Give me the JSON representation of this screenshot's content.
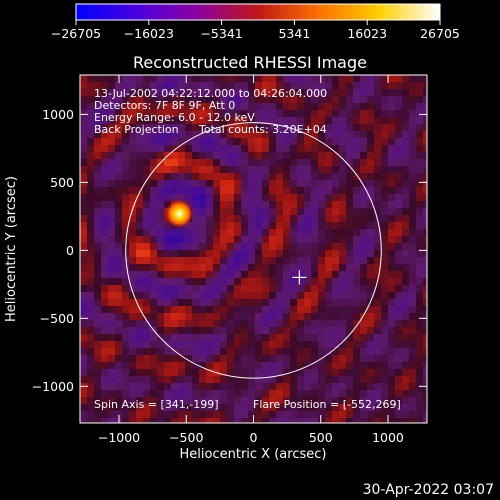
{
  "chart_data": {
    "type": "heatmap",
    "title": "Reconstructed RHESSI Image",
    "xlabel": "Heliocentric X (arcsec)",
    "ylabel": "Heliocentric Y (arcsec)",
    "xlim": [
      -1290,
      1290
    ],
    "ylim": [
      -1270,
      1290
    ],
    "xticks": [
      "−1000",
      "−500",
      "0",
      "500",
      "1000"
    ],
    "xtick_values": [
      -1000,
      -500,
      0,
      500,
      1000
    ],
    "yticks": [
      "1000",
      "500",
      "0",
      "−500",
      "−1000"
    ],
    "ytick_values": [
      1000,
      500,
      0,
      -500,
      -1000
    ],
    "colorbar": {
      "tick_labels": [
        "−26705",
        "−16023",
        "−5341",
        "5341",
        "16023",
        "26705"
      ],
      "tick_values": [
        -26705,
        -16023,
        -5341,
        5341,
        16023,
        26705
      ],
      "range": [
        -26705,
        26705
      ],
      "colors": [
        "#0000ff",
        "#4a00e0",
        "#8a00a0",
        "#c01818",
        "#ff7000",
        "#ffd000",
        "#ffffff"
      ]
    },
    "annotations": [
      "13-Jul-2002 04:22:12.000 to 04:26:04.000",
      "Detectors: 7F 8F 9F, Att 0",
      "Energy Range: 6.0 - 12.0 keV",
      "Back Projection",
      "Total counts: 3.20E+04",
      "Spin Axis = [341,-199]",
      "Flare Position = [-552,269]"
    ],
    "flare_position": [
      -552,
      269
    ],
    "spin_axis": [
      341,
      -199
    ],
    "solar_limb_radius": 950
  },
  "footer": {
    "timestamp": "30-Apr-2022 03:07"
  }
}
